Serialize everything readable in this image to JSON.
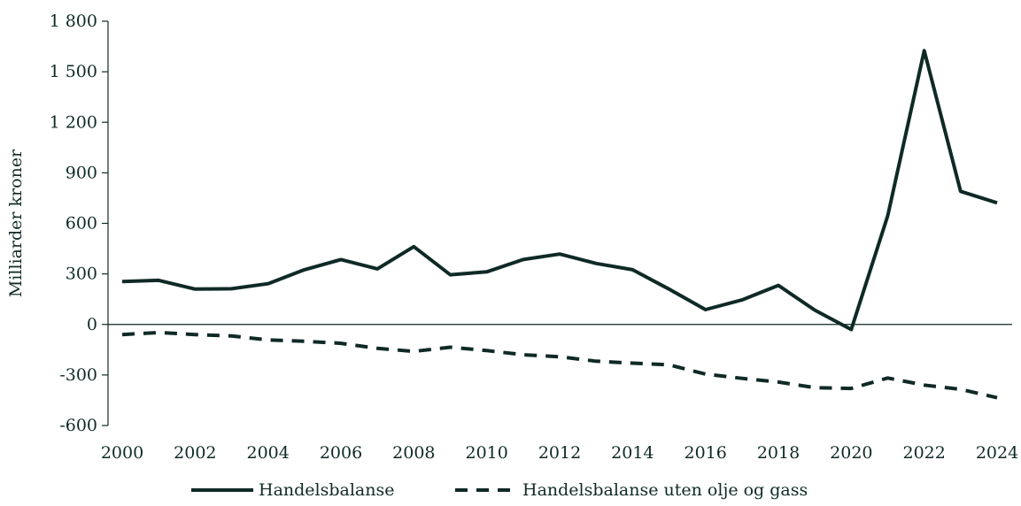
{
  "chart_data": {
    "type": "line",
    "title": "",
    "xlabel": "",
    "ylabel": "Milliarder kroner",
    "ylim": [
      -600,
      1800
    ],
    "yticks": [
      -600,
      -300,
      0,
      300,
      600,
      900,
      1200,
      1500,
      1800
    ],
    "ytick_labels": [
      "-600",
      "-300",
      "0",
      "300",
      "600",
      "900",
      "1 200",
      "1 500",
      "1 800"
    ],
    "xticks": [
      2000,
      2002,
      2004,
      2006,
      2008,
      2010,
      2012,
      2014,
      2016,
      2018,
      2020,
      2022,
      2024
    ],
    "xtick_labels": [
      "2000",
      "2002",
      "2004",
      "2006",
      "2008",
      "2010",
      "2012",
      "2014",
      "2016",
      "2018",
      "2020",
      "2022",
      "2024"
    ],
    "x": [
      2000,
      2001,
      2002,
      2003,
      2004,
      2005,
      2006,
      2007,
      2008,
      2009,
      2010,
      2011,
      2012,
      2013,
      2014,
      2015,
      2016,
      2017,
      2018,
      2019,
      2020,
      2021,
      2022,
      2023,
      2024
    ],
    "legend_position": "bottom",
    "grid": false,
    "series": [
      {
        "name": "Handelsbalanse",
        "style": "solid",
        "color": "#0f2a26",
        "values": [
          255,
          262,
          210,
          212,
          242,
          325,
          385,
          330,
          462,
          295,
          312,
          385,
          418,
          362,
          325,
          210,
          88,
          145,
          232,
          85,
          -30,
          645,
          1625,
          790,
          722
        ]
      },
      {
        "name": "Handelsbalanse uten olje og gass",
        "style": "dashed",
        "color": "#0f2a26",
        "values": [
          -60,
          -48,
          -60,
          -68,
          -92,
          -100,
          -112,
          -142,
          -160,
          -135,
          -155,
          -180,
          -192,
          -218,
          -230,
          -240,
          -295,
          -320,
          -342,
          -375,
          -380,
          -318,
          -360,
          -385,
          -435
        ]
      }
    ]
  }
}
